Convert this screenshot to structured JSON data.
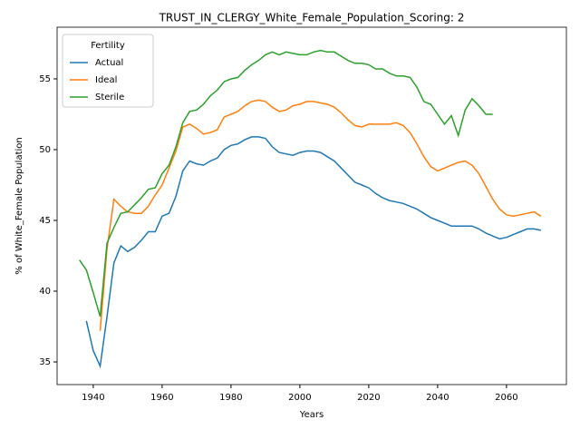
{
  "chart_data": {
    "type": "line",
    "title": "TRUST_IN_CLERGY_White_Female_Population_Scoring: 2",
    "x_label": "Years",
    "y_label": "% of White_Female Population",
    "legend_title": "Fertility",
    "legend": "upper left",
    "grid": false,
    "x": [
      1936,
      1938,
      1940,
      1942,
      1944,
      1946,
      1948,
      1950,
      1952,
      1954,
      1956,
      1958,
      1960,
      1962,
      1964,
      1966,
      1968,
      1970,
      1972,
      1974,
      1976,
      1978,
      1980,
      1982,
      1984,
      1986,
      1988,
      1990,
      1992,
      1994,
      1996,
      1998,
      2000,
      2002,
      2004,
      2006,
      2008,
      2010,
      2012,
      2014,
      2016,
      2018,
      2020,
      2022,
      2024,
      2026,
      2028,
      2030,
      2032,
      2034,
      2036,
      2038,
      2040,
      2042,
      2044,
      2046,
      2048,
      2050,
      2052,
      2054,
      2056,
      2058,
      2060,
      2062,
      2064,
      2066,
      2068,
      2070
    ],
    "series": [
      {
        "name": "Actual",
        "color": "#1f77b4",
        "values": [
          null,
          37.9,
          35.8,
          34.7,
          38.2,
          42.0,
          43.2,
          42.8,
          43.1,
          43.6,
          44.2,
          44.2,
          45.3,
          45.5,
          46.7,
          48.5,
          49.2,
          49.0,
          48.9,
          49.2,
          49.4,
          50.0,
          50.3,
          50.4,
          50.7,
          50.9,
          50.9,
          50.8,
          50.2,
          49.8,
          49.7,
          49.6,
          49.8,
          49.9,
          49.9,
          49.8,
          49.5,
          49.2,
          48.7,
          48.2,
          47.7,
          47.5,
          47.3,
          46.9,
          46.6,
          46.4,
          46.3,
          46.2,
          46.0,
          45.8,
          45.5,
          45.2,
          45.0,
          44.8,
          44.6,
          44.6,
          44.6,
          44.6,
          44.4,
          44.1,
          43.9,
          43.7,
          43.8,
          44.0,
          44.2,
          44.4,
          44.4,
          44.3
        ]
      },
      {
        "name": "Ideal",
        "color": "#ff7f0e",
        "values": [
          null,
          null,
          null,
          37.2,
          43.0,
          46.5,
          46.0,
          45.6,
          45.5,
          45.5,
          46.0,
          46.8,
          47.5,
          48.7,
          49.9,
          51.6,
          51.8,
          51.5,
          51.1,
          51.2,
          51.4,
          52.3,
          52.5,
          52.7,
          53.1,
          53.4,
          53.5,
          53.4,
          53.0,
          52.7,
          52.8,
          53.1,
          53.2,
          53.4,
          53.4,
          53.3,
          53.2,
          53.0,
          52.6,
          52.1,
          51.7,
          51.6,
          51.8,
          51.8,
          51.8,
          51.8,
          51.9,
          51.7,
          51.2,
          50.4,
          49.5,
          48.8,
          48.5,
          48.7,
          48.9,
          49.1,
          49.2,
          48.9,
          48.3,
          47.4,
          46.5,
          45.8,
          45.4,
          45.3,
          45.4,
          45.5,
          45.6,
          45.3
        ]
      },
      {
        "name": "Sterile",
        "color": "#2ca02c",
        "values": [
          42.2,
          41.5,
          39.9,
          38.2,
          43.4,
          44.5,
          45.5,
          45.6,
          46.1,
          46.6,
          47.2,
          47.3,
          48.3,
          48.9,
          50.2,
          51.9,
          52.7,
          52.8,
          53.2,
          53.8,
          54.2,
          54.8,
          55.0,
          55.1,
          55.6,
          56.0,
          56.3,
          56.7,
          56.9,
          56.7,
          56.9,
          56.8,
          56.7,
          56.7,
          56.9,
          57.0,
          56.9,
          56.9,
          56.6,
          56.3,
          56.1,
          56.1,
          56.0,
          55.7,
          55.7,
          55.4,
          55.2,
          55.2,
          55.1,
          54.4,
          53.4,
          53.2,
          52.5,
          51.8,
          52.4,
          51.0,
          52.8,
          53.6,
          53.1,
          52.5,
          52.5,
          null,
          null,
          null,
          null,
          null,
          null,
          null
        ]
      }
    ],
    "xlim": [
      1929.5,
      2077.4
    ],
    "xticks": [
      1940,
      1960,
      1980,
      2000,
      2020,
      2040,
      2060
    ],
    "ylim": [
      33.4,
      58.65
    ],
    "yticks": [
      35,
      40,
      45,
      50,
      55
    ]
  }
}
